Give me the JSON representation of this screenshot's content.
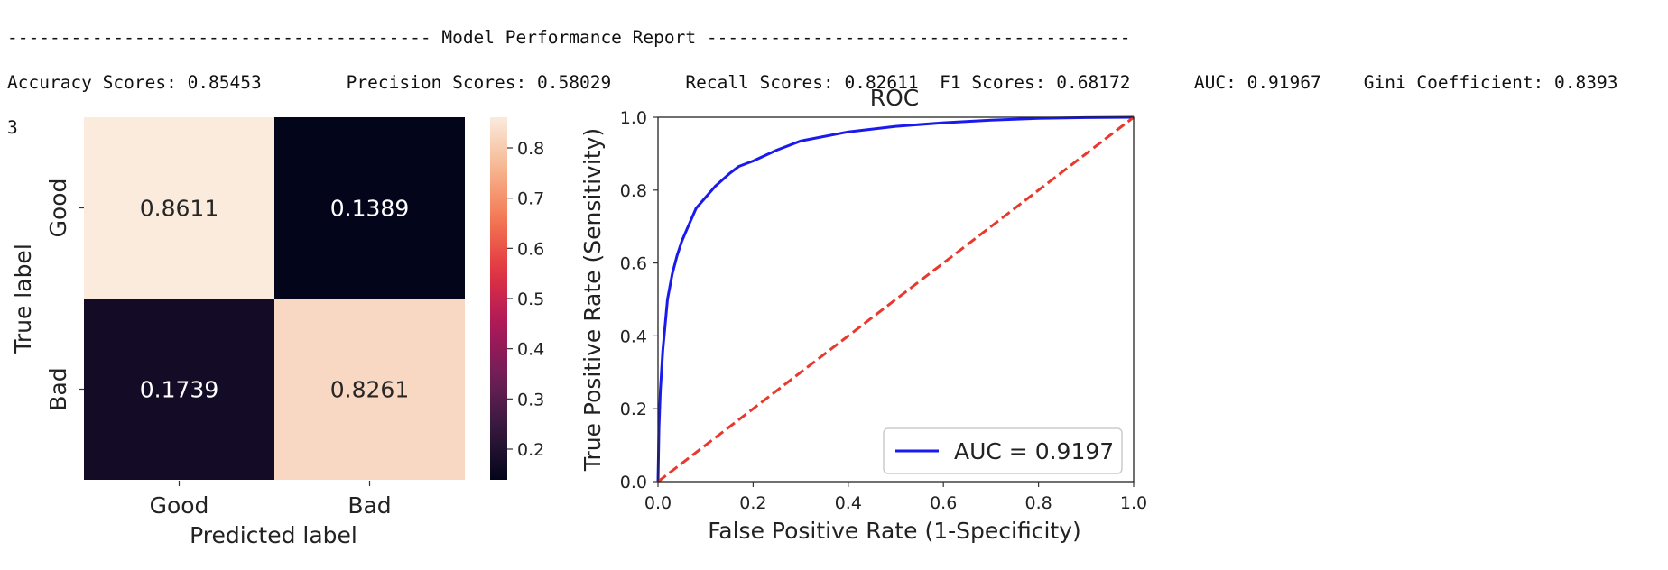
{
  "report": {
    "header": "---------------------------------------- Model Performance Report ----------------------------------------",
    "metrics_line": "Accuracy Scores: 0.85453        Precision Scores: 0.58029       Recall Scores: 0.82611  F1 Scores: 0.68172      AUC: 0.91967    Gini Coefficient: 0.8393",
    "wrap_line": "3"
  },
  "chart_data": [
    {
      "type": "heatmap",
      "title": "",
      "xlabel": "Predicted label",
      "ylabel": "True label",
      "x_categories": [
        "Good",
        "Bad"
      ],
      "y_categories": [
        "Good",
        "Bad"
      ],
      "values": [
        [
          0.8611,
          0.1389
        ],
        [
          0.1739,
          0.8261
        ]
      ],
      "colorbar": {
        "min": 0.1389,
        "max": 0.8611,
        "ticks": [
          "0.8",
          "0.7",
          "0.6",
          "0.5",
          "0.4",
          "0.3",
          "0.2"
        ],
        "colormap": "rocket",
        "stops": [
          "#03051a",
          "#35193e",
          "#701f57",
          "#ad1759",
          "#e13342",
          "#f37651",
          "#f6b48f",
          "#faebdd"
        ]
      }
    },
    {
      "type": "line",
      "title": "ROC",
      "xlabel": "False Positive Rate (1-Specificity)",
      "ylabel": "True Positive Rate (Sensitivity)",
      "xlim": [
        0,
        1
      ],
      "ylim": [
        0,
        1
      ],
      "xticks": [
        "0.0",
        "0.2",
        "0.4",
        "0.6",
        "0.8",
        "1.0"
      ],
      "yticks": [
        "0.0",
        "0.2",
        "0.4",
        "0.6",
        "0.8",
        "1.0"
      ],
      "legend_position": "lower-right",
      "series": [
        {
          "name": "AUC = 0.9197",
          "color": "#1a1aee",
          "style": "solid",
          "x": [
            0,
            0.002,
            0.005,
            0.01,
            0.02,
            0.03,
            0.04,
            0.05,
            0.06,
            0.07,
            0.08,
            0.1,
            0.12,
            0.15,
            0.17,
            0.2,
            0.25,
            0.3,
            0.4,
            0.5,
            0.6,
            0.7,
            0.8,
            0.9,
            1.0
          ],
          "y": [
            0,
            0.15,
            0.25,
            0.36,
            0.5,
            0.57,
            0.62,
            0.66,
            0.69,
            0.72,
            0.75,
            0.78,
            0.81,
            0.845,
            0.865,
            0.88,
            0.91,
            0.935,
            0.96,
            0.975,
            0.985,
            0.992,
            0.997,
            0.999,
            1.0
          ]
        },
        {
          "name": "",
          "color": "#e8392e",
          "style": "dashed",
          "x": [
            0,
            1
          ],
          "y": [
            0,
            1
          ]
        }
      ]
    }
  ]
}
